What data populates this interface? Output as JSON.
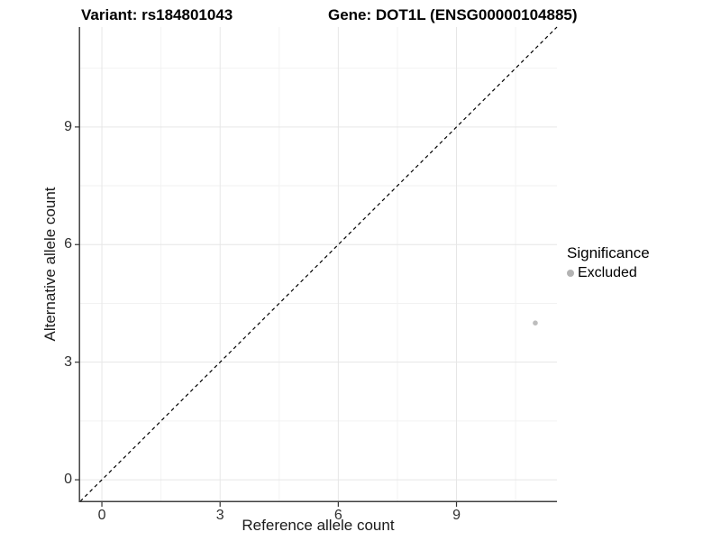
{
  "chart_data": {
    "type": "scatter",
    "title_left": "Variant: rs184801043",
    "title_right": "Gene: DOT1L (ENSG00000104885)",
    "xlabel": "Reference allele count",
    "ylabel": "Alternative allele count",
    "xlim": [
      -0.55,
      11.55
    ],
    "ylim": [
      -0.55,
      11.55
    ],
    "x_ticks": [
      0,
      3,
      6,
      9
    ],
    "y_ticks": [
      0,
      3,
      6,
      9
    ],
    "x_minor_ticks": [
      1.5,
      4.5,
      7.5,
      10.5
    ],
    "y_minor_ticks": [
      1.5,
      4.5,
      7.5,
      10.5
    ],
    "grid": "major and minor gridlines, very light gray on white panel",
    "reference_line": {
      "kind": "abline",
      "slope": 1,
      "intercept": 0,
      "style": "dashed",
      "color": "#000000"
    },
    "series": [
      {
        "name": "Excluded",
        "color": "#bdbdbd",
        "points": [
          {
            "x": 11,
            "y": 4
          }
        ]
      }
    ],
    "legend": {
      "title": "Significance",
      "position": "right",
      "items": [
        {
          "label": "Excluded",
          "color": "#b3b3b3"
        }
      ]
    }
  },
  "colors": {
    "background": "#ffffff",
    "axis_line": "#404040",
    "tick_mark": "#333333",
    "tick_label": "#303030",
    "grid_major": "#e6e6e6",
    "grid_minor": "#f2f2f2"
  }
}
